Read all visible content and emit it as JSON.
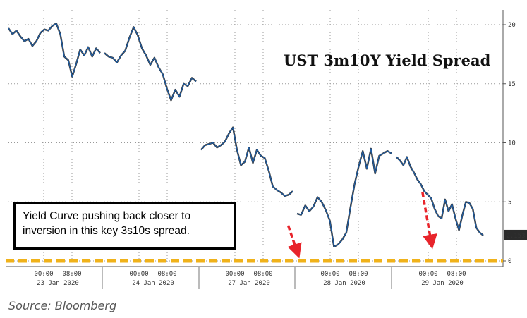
{
  "chart_data": {
    "type": "line",
    "title": "UST 3m10Y Yield Spread",
    "xlabel": "",
    "ylabel": "",
    "ylim": [
      -1,
      21
    ],
    "yticks": [
      0,
      5,
      10,
      15,
      20
    ],
    "last_value_label": "2.153",
    "x_tick_labels": [
      {
        "time": "00:00",
        "date": "23 Jan 2020"
      },
      {
        "time": "08:00",
        "date": ""
      },
      {
        "time": "00:00",
        "date": "24 Jan 2020"
      },
      {
        "time": "08:00",
        "date": ""
      },
      {
        "time": "00:00",
        "date": "27 Jan 2020"
      },
      {
        "time": "08:00",
        "date": ""
      },
      {
        "time": "00:00",
        "date": "28 Jan 2020"
      },
      {
        "time": "08:00",
        "date": ""
      },
      {
        "time": "00:00",
        "date": "29 Jan 2020"
      },
      {
        "time": "08:00",
        "date": ""
      }
    ],
    "series": [
      {
        "color": "#1f5fa8",
        "segments": [
          {
            "session": "23 Jan 2020",
            "values": [
              19.7,
              19.2,
              19.5,
              19.0,
              18.6,
              18.8,
              18.2,
              18.6,
              19.3,
              19.6,
              19.5,
              19.9,
              20.1,
              19.2,
              17.3,
              17.0,
              15.6,
              16.7,
              17.9,
              17.4,
              18.1,
              17.3,
              18.0,
              17.6
            ]
          },
          {
            "session": "24 Jan 2020",
            "values": [
              17.6,
              17.3,
              17.2,
              16.8,
              17.4,
              17.8,
              18.9,
              19.8,
              19.1,
              18.0,
              17.4,
              16.6,
              17.2,
              16.4,
              15.8,
              14.6,
              13.6,
              14.5,
              13.9,
              15.0,
              14.8,
              15.5,
              15.2
            ]
          },
          {
            "session": "27 Jan 2020",
            "values": [
              9.4,
              9.8,
              9.9,
              10.0,
              9.6,
              9.8,
              10.1,
              10.8,
              11.3,
              9.4,
              8.1,
              8.4,
              9.6,
              8.3,
              9.4,
              8.9,
              8.7,
              7.6,
              6.3,
              6.0,
              5.8,
              5.5,
              5.6,
              5.9
            ]
          },
          {
            "session": "28 Jan 2020",
            "values": [
              4.0,
              3.9,
              4.7,
              4.2,
              4.6,
              5.4,
              5.0,
              4.3,
              3.4,
              1.2,
              1.4,
              1.8,
              2.4,
              4.5,
              6.5,
              8.0,
              9.3,
              7.8,
              9.5,
              7.4,
              8.9,
              9.1,
              9.3,
              9.1
            ]
          },
          {
            "session": "29 Jan 2020",
            "values": [
              8.8,
              8.5,
              8.1,
              8.8,
              8.0,
              7.5,
              6.9,
              6.5,
              5.9,
              5.6,
              5.3,
              4.4,
              3.8,
              3.6,
              5.2,
              4.2,
              4.8,
              3.6,
              2.6,
              3.9,
              5.0,
              4.9,
              4.4,
              2.8,
              2.4,
              2.153
            ]
          }
        ]
      }
    ],
    "reference_line": {
      "y": 0,
      "color": "#f0b21a",
      "style": "dashed"
    },
    "annotations": {
      "callout": "Yield Curve pushing back closer to inversion in this key 3s10s spread.",
      "arrows": [
        {
          "from": [
            5.9,
            3.0
          ],
          "to": [
            6.0,
            0.8
          ],
          "color": "#e8242b",
          "style": "dashed"
        },
        {
          "from": [
            8.6,
            5.8
          ],
          "to": [
            8.8,
            1.6
          ],
          "color": "#e8242b",
          "style": "dashed"
        }
      ]
    },
    "source": "Source: Bloomberg",
    "grid": true,
    "legend": "none"
  }
}
